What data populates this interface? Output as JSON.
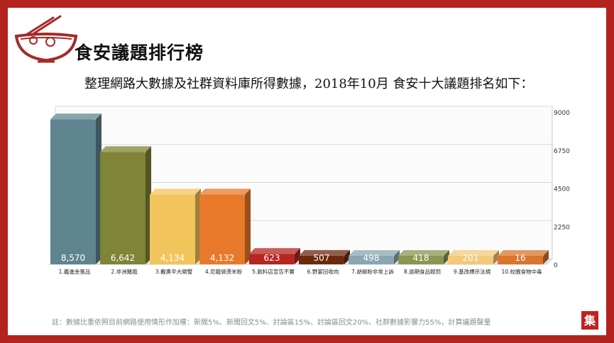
{
  "page": {
    "title": "食安議題排行榜",
    "subtitle": "整理網路大數據及社群資料庫所得數據，2018年10月 食安十大議題排名如下：",
    "footnote": "註：數據比重依照目前網路使用情形作加權：新聞5%、新聞回文5%、討論區15%、討論區回文20%、社群數據影響力55%，計算議題聲量",
    "stamp_text": "集"
  },
  "chart_data": {
    "type": "bar",
    "categories": [
      "1.義進金蛋品",
      "2.非洲豬瘟",
      "3.戴奧辛大閘蟹",
      "4.尼龍袋燙米粉",
      "5.飲料店宣告不實",
      "6.野宴回收肉",
      "7.胡椒粉非常上訴",
      "8.逾期食品輕罰",
      "9.基改標示法規",
      "10.校園食物中毒"
    ],
    "values": [
      8570,
      6642,
      4134,
      4132,
      623,
      507,
      498,
      418,
      201,
      16
    ],
    "value_labels": [
      "8,570",
      "6,642",
      "4,134",
      "4,132",
      "623",
      "507",
      "498",
      "418",
      "201",
      "16"
    ],
    "ylim": [
      0,
      9000
    ],
    "yticks": [
      "0",
      "2250",
      "4500",
      "6750",
      "9000"
    ],
    "ytick_values": [
      0,
      2250,
      4500,
      6750,
      9000
    ],
    "axis_side": "right",
    "grid": true,
    "colors": [
      "#5f8590",
      "#7f8436",
      "#f2c55c",
      "#e9792a",
      "#b52622",
      "#6b2a0d",
      "#8aa6b2",
      "#8b9650",
      "#f3c97c",
      "#d9752c"
    ],
    "label_colors": [
      "#ffffff",
      "#ffffff",
      "#ffffff",
      "#ffffff",
      "#ffffff",
      "#ffffff",
      "#ffffff",
      "#ffffff",
      "#ffffff",
      "#ffffff"
    ]
  }
}
